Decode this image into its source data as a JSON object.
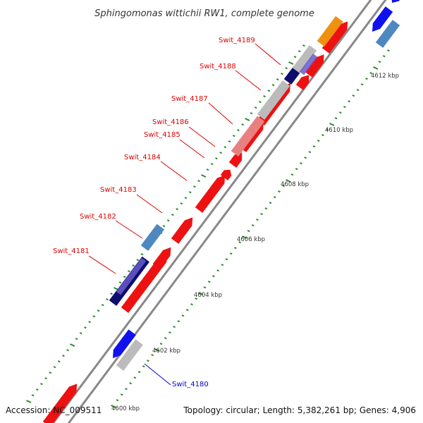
{
  "title": "Sphingomonas wittichii RW1, complete genome",
  "footer": {
    "accession": "Accession: NC_009511",
    "summary": "Topology: circular; Length: 5,382,261 bp; Genes: 4,906"
  },
  "colors": {
    "strand_line": "#888888",
    "plus_gene": "#ee1111",
    "minus_gene_blue": "#1111ee",
    "navy": "#0d0d70",
    "steel_blue": "#4f88c0",
    "grey_feature": "#bbbbbb",
    "orange": "#f09010",
    "pink": "#e88080",
    "tick_green": "#2a8a2a",
    "red_label": "#dd0000",
    "blue_label": "#0000cc"
  },
  "tick_labels": [
    "4600 kbp",
    "4602 kbp",
    "4604 kbp",
    "4606 kbp",
    "4608 kbp",
    "4610 kbp",
    "4612 kbp"
  ],
  "gene_labels": [
    {
      "text": "Swit_4189",
      "color": "red"
    },
    {
      "text": "Swit_4188",
      "color": "red"
    },
    {
      "text": "Swit_4187",
      "color": "red"
    },
    {
      "text": "Swit_4186",
      "color": "red"
    },
    {
      "text": "Swit_4185",
      "color": "red"
    },
    {
      "text": "Swit_4184",
      "color": "red"
    },
    {
      "text": "Swit_4183",
      "color": "red"
    },
    {
      "text": "Swit_4182",
      "color": "red"
    },
    {
      "text": "Swit_4181",
      "color": "red"
    },
    {
      "text": "Swit_4180",
      "color": "blue"
    }
  ]
}
